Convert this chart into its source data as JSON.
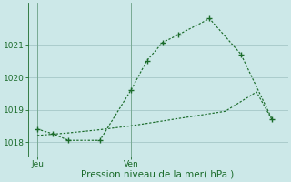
{
  "title": "",
  "xlabel": "Pression niveau de la mer( hPa )",
  "ylabel": "",
  "bg_color": "#cce8e8",
  "grid_color": "#aacccc",
  "line_color": "#1a6b2a",
  "line1_x": [
    0,
    0.5,
    1,
    2,
    3,
    3.5,
    4,
    4.5,
    5.5,
    6.5,
    7.5
  ],
  "line1_y": [
    1018.4,
    1018.25,
    1018.05,
    1018.05,
    1019.62,
    1020.52,
    1021.08,
    1021.32,
    1021.82,
    1020.72,
    1018.7
  ],
  "line2_x": [
    0,
    1,
    2,
    3,
    4,
    5,
    6,
    7,
    7.5
  ],
  "line2_y": [
    1018.2,
    1018.28,
    1018.38,
    1018.5,
    1018.65,
    1018.8,
    1018.95,
    1019.55,
    1018.68
  ],
  "xtick_positions": [
    0,
    3
  ],
  "xtick_labels": [
    "Jeu",
    "Ven"
  ],
  "ytick_positions": [
    1018,
    1019,
    1020,
    1021
  ],
  "ytick_labels": [
    "1018",
    "1019",
    "1020",
    "1021"
  ],
  "ylim": [
    1017.55,
    1022.3
  ],
  "xlim": [
    -0.3,
    8.0
  ]
}
